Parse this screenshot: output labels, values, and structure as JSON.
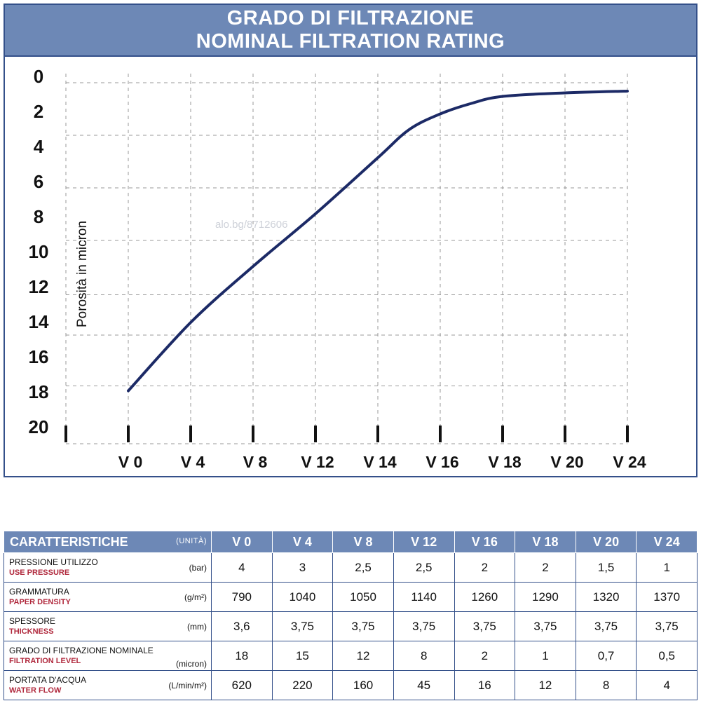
{
  "header": {
    "title_line1": "GRADO DI FILTRAZIONE",
    "title_line2": "NOMINAL FILTRATION RATING"
  },
  "watermark": "alo.bg/8712606",
  "colors": {
    "header_bg": "#6d88b6",
    "border": "#34508a",
    "curve": "#1c2a66",
    "grid": "#9a9a9a",
    "english_label": "#b0283c"
  },
  "chart_data": {
    "type": "line",
    "title": "GRADO DI FILTRAZIONE / NOMINAL FILTRATION RATING",
    "ylabel": "Porosità  in micron",
    "xlabel": "",
    "y_ticks": [
      "0",
      "2",
      "4",
      "6",
      "8",
      "10",
      "12",
      "14",
      "16",
      "18",
      "20"
    ],
    "ylim": [
      0,
      20
    ],
    "y_inverted": true,
    "x_ticks": [
      "",
      "V 0",
      "V 4",
      "V 8",
      "V 12",
      "V 14",
      "V 16",
      "V 18",
      "V 20",
      "V 24"
    ],
    "grid": true,
    "series": [
      {
        "x": [
          1,
          2,
          3,
          4,
          5,
          5.5,
          6,
          6.5,
          7,
          8,
          9
        ],
        "y": [
          17.9,
          14.0,
          10.8,
          7.8,
          4.6,
          3.0,
          2.1,
          1.5,
          1.1,
          0.9,
          0.8
        ]
      }
    ]
  },
  "table": {
    "header_label": "CARATTERISTICHE",
    "header_unit": "(UNITÀ)",
    "columns": [
      "V 0",
      "V 4",
      "V 8",
      "V 12",
      "V 16",
      "V 18",
      "V 20",
      "V 24"
    ],
    "rows": [
      {
        "label_it": "PRESSIONE UTILIZZO",
        "label_en": "USE PRESSURE",
        "unit": "(bar)",
        "values": [
          "4",
          "3",
          "2,5",
          "2,5",
          "2",
          "2",
          "1,5",
          "1"
        ]
      },
      {
        "label_it": "GRAMMATURA",
        "label_en": "PAPER DENSITY",
        "unit": "(g/m²)",
        "values": [
          "790",
          "1040",
          "1050",
          "1140",
          "1260",
          "1290",
          "1320",
          "1370"
        ]
      },
      {
        "label_it": "SPESSORE",
        "label_en": "THICKNESS",
        "unit": "(mm)",
        "values": [
          "3,6",
          "3,75",
          "3,75",
          "3,75",
          "3,75",
          "3,75",
          "3,75",
          "3,75"
        ]
      },
      {
        "label_it": "GRADO DI FILTRAZIONE NOMINALE",
        "label_en": "FILTRATION LEVEL",
        "unit": "(micron)",
        "values": [
          "18",
          "15",
          "12",
          "8",
          "2",
          "1",
          "0,7",
          "0,5"
        ]
      },
      {
        "label_it": "PORTATA D'ACQUA",
        "label_en": "WATER FLOW",
        "unit": "(L/min/m²)",
        "values": [
          "620",
          "220",
          "160",
          "45",
          "16",
          "12",
          "8",
          "4"
        ]
      }
    ]
  }
}
